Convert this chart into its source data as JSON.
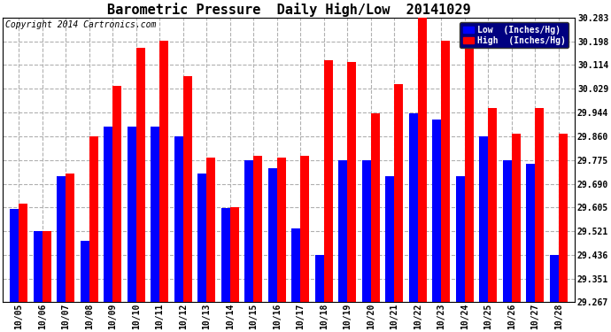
{
  "title": "Barometric Pressure  Daily High/Low  20141029",
  "copyright": "Copyright 2014 Cartronics.com",
  "legend_low": "Low  (Inches/Hg)",
  "legend_high": "High  (Inches/Hg)",
  "dates": [
    "10/05",
    "10/06",
    "10/07",
    "10/08",
    "10/09",
    "10/10",
    "10/11",
    "10/12",
    "10/13",
    "10/14",
    "10/15",
    "10/16",
    "10/17",
    "10/18",
    "10/19",
    "10/20",
    "10/21",
    "10/22",
    "10/23",
    "10/24",
    "10/25",
    "10/26",
    "10/27",
    "10/28"
  ],
  "low_values": [
    29.601,
    29.521,
    29.717,
    29.487,
    29.894,
    29.894,
    29.894,
    29.86,
    29.726,
    29.604,
    29.775,
    29.745,
    29.53,
    29.436,
    29.775,
    29.775,
    29.717,
    29.94,
    29.92,
    29.717,
    29.86,
    29.775,
    29.76,
    29.436
  ],
  "high_values": [
    29.62,
    29.521,
    29.726,
    29.86,
    30.04,
    30.175,
    30.2,
    30.075,
    29.785,
    29.605,
    29.79,
    29.785,
    29.79,
    30.13,
    30.125,
    29.94,
    30.045,
    30.283,
    30.2,
    30.2,
    29.96,
    29.87,
    29.96,
    29.87
  ],
  "bar_color_low": "#0000ff",
  "bar_color_high": "#ff0000",
  "bg_color": "#ffffff",
  "grid_color": "#b0b0b0",
  "yticks": [
    29.267,
    29.351,
    29.436,
    29.521,
    29.605,
    29.69,
    29.775,
    29.86,
    29.944,
    30.029,
    30.114,
    30.198,
    30.283
  ],
  "ymin": 29.267,
  "ymax": 30.283,
  "title_fontsize": 11,
  "copyright_fontsize": 7,
  "legend_fontsize": 7,
  "tick_fontsize": 7
}
